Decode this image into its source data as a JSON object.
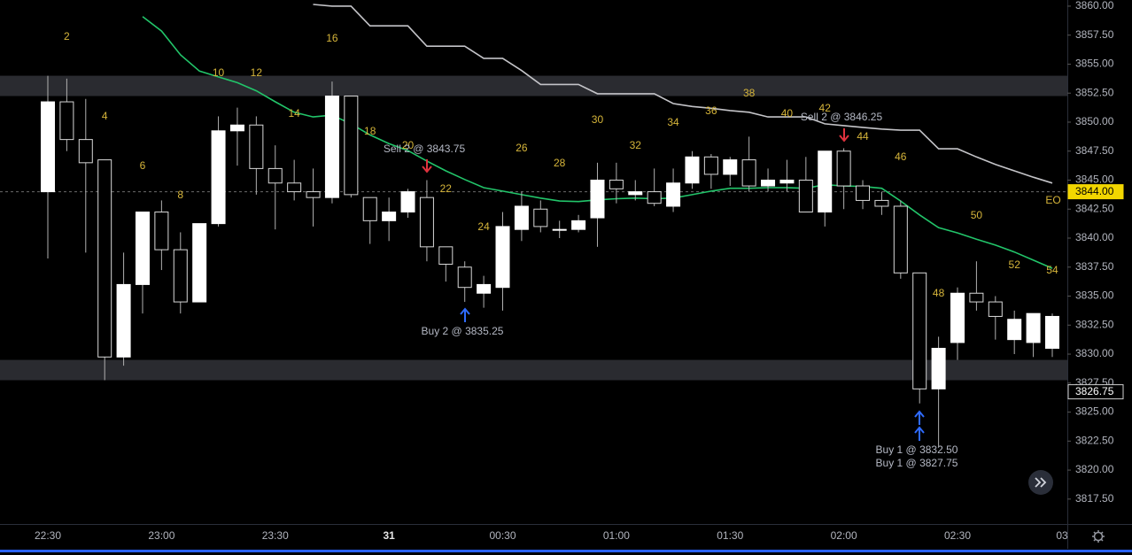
{
  "chart_data": {
    "type": "candlestick",
    "categories": [
      "22:30",
      null,
      null,
      null,
      null,
      null,
      "23:00",
      null,
      null,
      null,
      null,
      null,
      "23:30",
      null,
      null,
      null,
      null,
      null,
      "31",
      null,
      null,
      null,
      null,
      null,
      "00:30",
      null,
      null,
      null,
      null,
      null,
      "01:00",
      null,
      null,
      null,
      null,
      null,
      "01:30",
      null,
      null,
      null,
      null,
      null,
      "02:00",
      null,
      null,
      null,
      null,
      null,
      "02:30",
      null,
      null,
      null,
      null,
      null
    ],
    "next_category_label": "03",
    "open": [
      3844.0,
      3851.75,
      3848.5,
      3846.75,
      3829.75,
      3836.0,
      3842.25,
      3839.0,
      3834.5,
      3841.25,
      3849.25,
      3849.75,
      3846.0,
      3844.75,
      3844.0,
      3843.5,
      3852.25,
      3843.5,
      3841.5,
      3842.25,
      3843.5,
      3839.25,
      3837.5,
      3835.25,
      3835.75,
      3840.75,
      3842.5,
      3840.75,
      3840.75,
      3841.75,
      3845.0,
      3843.75,
      3844.0,
      3842.75,
      3844.75,
      3847.0,
      3845.5,
      3846.75,
      3844.5,
      3844.75,
      3845.0,
      3842.25,
      3847.5,
      3844.5,
      3843.25,
      3842.75,
      3837.0,
      3827.0,
      3831.0,
      3835.25,
      3834.5,
      3831.25,
      3831.0,
      3830.5
    ],
    "high": [
      3854.0,
      3853.75,
      3852.0,
      3846.75,
      3838.75,
      3842.25,
      3843.25,
      3840.5,
      3841.25,
      3850.5,
      3851.25,
      3850.5,
      3848.0,
      3846.75,
      3846.0,
      3853.5,
      3852.25,
      3843.5,
      3843.5,
      3844.25,
      3845.0,
      3839.25,
      3838.0,
      3836.75,
      3842.25,
      3844.0,
      3843.25,
      3841.5,
      3842.0,
      3846.5,
      3846.5,
      3845.0,
      3846.0,
      3846.0,
      3847.5,
      3847.25,
      3847.0,
      3848.75,
      3846.0,
      3846.75,
      3847.0,
      3847.5,
      3847.75,
      3845.0,
      3844.0,
      3843.25,
      3837.0,
      3831.5,
      3835.75,
      3838.0,
      3835.0,
      3833.75,
      3833.5,
      3833.5
    ],
    "low": [
      3838.25,
      3847.5,
      3838.75,
      3827.75,
      3829.0,
      3833.5,
      3837.25,
      3833.5,
      3834.5,
      3841.0,
      3846.25,
      3843.75,
      3840.75,
      3843.25,
      3841.0,
      3843.0,
      3843.5,
      3839.5,
      3839.75,
      3841.75,
      3838.0,
      3836.25,
      3834.5,
      3834.0,
      3833.75,
      3839.75,
      3840.5,
      3840.0,
      3840.5,
      3839.25,
      3843.0,
      3843.25,
      3842.75,
      3842.25,
      3844.25,
      3844.25,
      3844.5,
      3844.0,
      3844.0,
      3844.0,
      3842.25,
      3841.0,
      3842.5,
      3842.5,
      3842.0,
      3836.5,
      3825.75,
      3822.0,
      3829.5,
      3833.75,
      3831.25,
      3830.0,
      3829.75,
      3829.75
    ],
    "close": [
      3851.75,
      3848.5,
      3846.5,
      3829.75,
      3836.0,
      3842.25,
      3839.0,
      3834.5,
      3841.25,
      3849.25,
      3849.75,
      3846.0,
      3844.75,
      3844.0,
      3843.5,
      3852.25,
      3843.75,
      3841.5,
      3842.25,
      3844.0,
      3839.25,
      3837.75,
      3835.75,
      3836.0,
      3841.0,
      3842.75,
      3841.0,
      3840.75,
      3841.5,
      3845.0,
      3844.25,
      3844.0,
      3843.0,
      3844.75,
      3847.0,
      3845.5,
      3846.75,
      3844.5,
      3845.0,
      3845.0,
      3842.25,
      3847.5,
      3844.5,
      3843.25,
      3842.75,
      3837.0,
      3827.0,
      3830.5,
      3835.25,
      3834.5,
      3833.25,
      3833.0,
      3833.5,
      3833.25
    ],
    "bar_numbers": [
      null,
      "2",
      null,
      "4",
      null,
      "6",
      null,
      "8",
      null,
      "10",
      null,
      "12",
      null,
      "14",
      null,
      "16",
      null,
      "18",
      null,
      "20",
      null,
      "22",
      null,
      "24",
      null,
      "26",
      null,
      "28",
      null,
      "30",
      null,
      "32",
      null,
      "34",
      null,
      "36",
      null,
      "38",
      null,
      "40",
      null,
      "42",
      null,
      "44",
      null,
      "46",
      null,
      "48",
      null,
      "50",
      null,
      "52",
      null,
      "54"
    ],
    "overlays": [
      {
        "color": "#22c56a",
        "values": [
          null,
          null,
          null,
          null,
          null,
          3859.1,
          3857.85,
          3855.8,
          3854.4,
          3853.9,
          3853.4,
          3852.7,
          3851.75,
          3850.85,
          3850.45,
          3850.6,
          3849.85,
          3848.9,
          3848.15,
          3847.55,
          3846.65,
          3845.8,
          3845.05,
          3844.35,
          3844.05,
          3843.75,
          3843.45,
          3843.2,
          3843.15,
          3843.3,
          3843.4,
          3843.45,
          3843.4,
          3843.45,
          3843.75,
          3844.05,
          3844.3,
          3844.3,
          3844.35,
          3844.35,
          3844.3,
          3844.6,
          3844.5,
          3844.45,
          3844.3,
          3843.2,
          3842.0,
          3840.9,
          3840.45,
          3839.9,
          3839.4,
          3838.8,
          3838.1,
          3837.4
        ]
      },
      {
        "color": "#c4c4c8",
        "values": [
          null,
          null,
          null,
          null,
          null,
          null,
          null,
          null,
          null,
          null,
          null,
          null,
          null,
          null,
          3860.15,
          3860.0,
          3860.0,
          3858.3,
          3858.3,
          3858.3,
          3856.55,
          3856.55,
          3856.55,
          3855.5,
          3855.5,
          3854.45,
          3853.25,
          3853.25,
          3853.25,
          3852.45,
          3852.45,
          3852.45,
          3852.45,
          3851.6,
          3851.35,
          3851.2,
          3851.0,
          3850.85,
          3850.45,
          3850.45,
          3850.45,
          3849.85,
          3849.7,
          3849.55,
          3849.4,
          3849.3,
          3849.3,
          3847.7,
          3847.7,
          3847.0,
          3846.35,
          3845.8,
          3845.25,
          3844.75
        ]
      }
    ],
    "zones": [
      [
        3852.25,
        3854.0
      ],
      [
        3827.75,
        3829.5
      ]
    ],
    "price_line": {
      "value": 3844.0,
      "label": "3844.00"
    },
    "last_price": {
      "value": 3826.75,
      "label": "3826.75"
    },
    "annotations": [
      "Sell 2 @ 3843.75",
      "Buy 2 @ 3835.25",
      "Sell 2 @ 3846.25",
      "Buy 1 @ 3832.50",
      "Buy 1 @ 3827.75",
      "EO"
    ],
    "ylim": [
      3815.35,
      3860.53
    ],
    "yticks": [
      {
        "value": 3817.5,
        "label": "3817.50"
      },
      {
        "value": 3820,
        "label": "3820.00"
      },
      {
        "value": 3822.5,
        "label": "3822.50"
      },
      {
        "value": 3825,
        "label": "3825.00"
      },
      {
        "value": 3827.5,
        "label": "3827.50"
      },
      {
        "value": 3830,
        "label": "3830.00"
      },
      {
        "value": 3832.5,
        "label": "3832.50"
      },
      {
        "value": 3835,
        "label": "3835.00"
      },
      {
        "value": 3837.5,
        "label": "3837.50"
      },
      {
        "value": 3840,
        "label": "3840.00"
      },
      {
        "value": 3842.5,
        "label": "3842.50"
      },
      {
        "value": 3845,
        "label": "3845.00"
      },
      {
        "value": 3847.5,
        "label": "3847.50"
      },
      {
        "value": 3850,
        "label": "3850.00"
      },
      {
        "value": 3852.5,
        "label": "3852.50"
      },
      {
        "value": 3855,
        "label": "3855.00"
      },
      {
        "value": 3857.5,
        "label": "3857.50"
      },
      {
        "value": 3860,
        "label": "3860.00"
      }
    ],
    "grid": false
  }
}
